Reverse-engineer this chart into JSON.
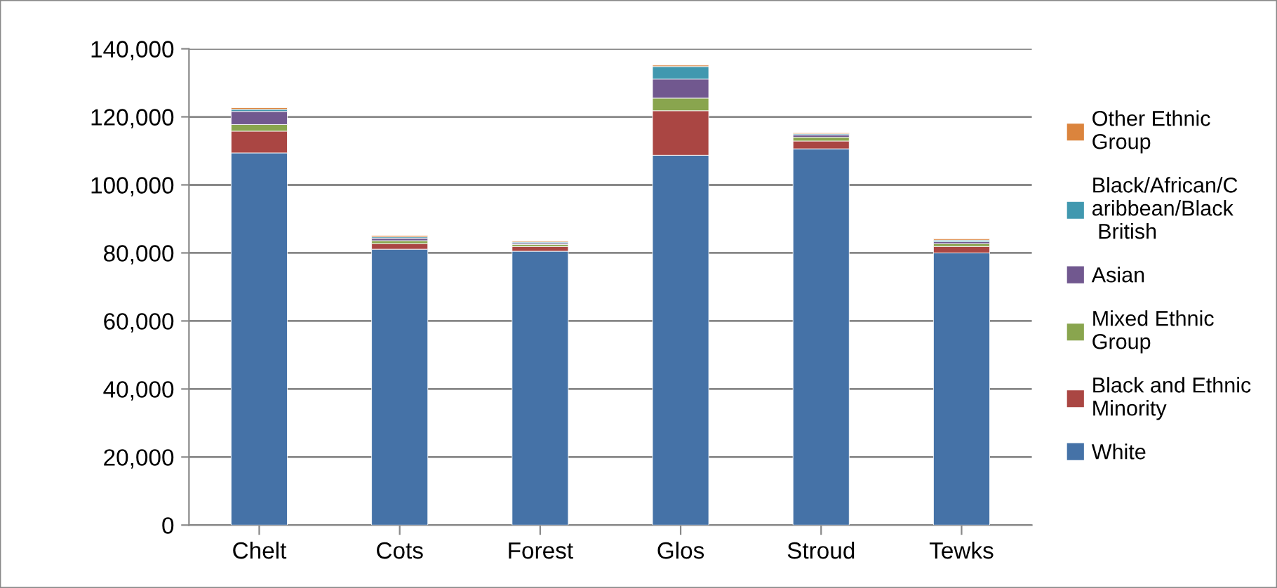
{
  "chart_data": {
    "type": "bar",
    "stacked": true,
    "categories": [
      "Chelt",
      "Cots",
      "Forest",
      "Glos",
      "Stroud",
      "Tewks"
    ],
    "series": [
      {
        "name": "White",
        "color": "#4572a7",
        "values": [
          109400,
          81100,
          80500,
          108700,
          110600,
          80000
        ]
      },
      {
        "name": "Black and Ethnic Minority",
        "color": "#aa4643",
        "values": [
          6400,
          1650,
          1400,
          13100,
          2300,
          1900
        ]
      },
      {
        "name": "Mixed Ethnic Group",
        "color": "#89a54e",
        "values": [
          1950,
          850,
          600,
          3700,
          1100,
          850
        ]
      },
      {
        "name": "Asian",
        "color": "#71588f",
        "values": [
          3850,
          700,
          400,
          5600,
          700,
          550
        ]
      },
      {
        "name": "Black/African/Caribbean/Black British",
        "color": "#4198af",
        "values": [
          600,
          400,
          300,
          3700,
          300,
          450
        ]
      },
      {
        "name": "Other Ethnic Group",
        "color": "#db843d",
        "values": [
          500,
          400,
          300,
          400,
          300,
          400
        ]
      }
    ],
    "ylim": [
      0,
      140000
    ],
    "yticks": [
      {
        "value": 0,
        "label": "0"
      },
      {
        "value": 20000,
        "label": "20,000"
      },
      {
        "value": 40000,
        "label": "40,000"
      },
      {
        "value": 60000,
        "label": "60,000"
      },
      {
        "value": 80000,
        "label": "80,000"
      },
      {
        "value": 100000,
        "label": "100,000"
      },
      {
        "value": 120000,
        "label": "120,000"
      },
      {
        "value": 140000,
        "label": "140,000"
      }
    ],
    "grid": "y",
    "legend": "right"
  }
}
